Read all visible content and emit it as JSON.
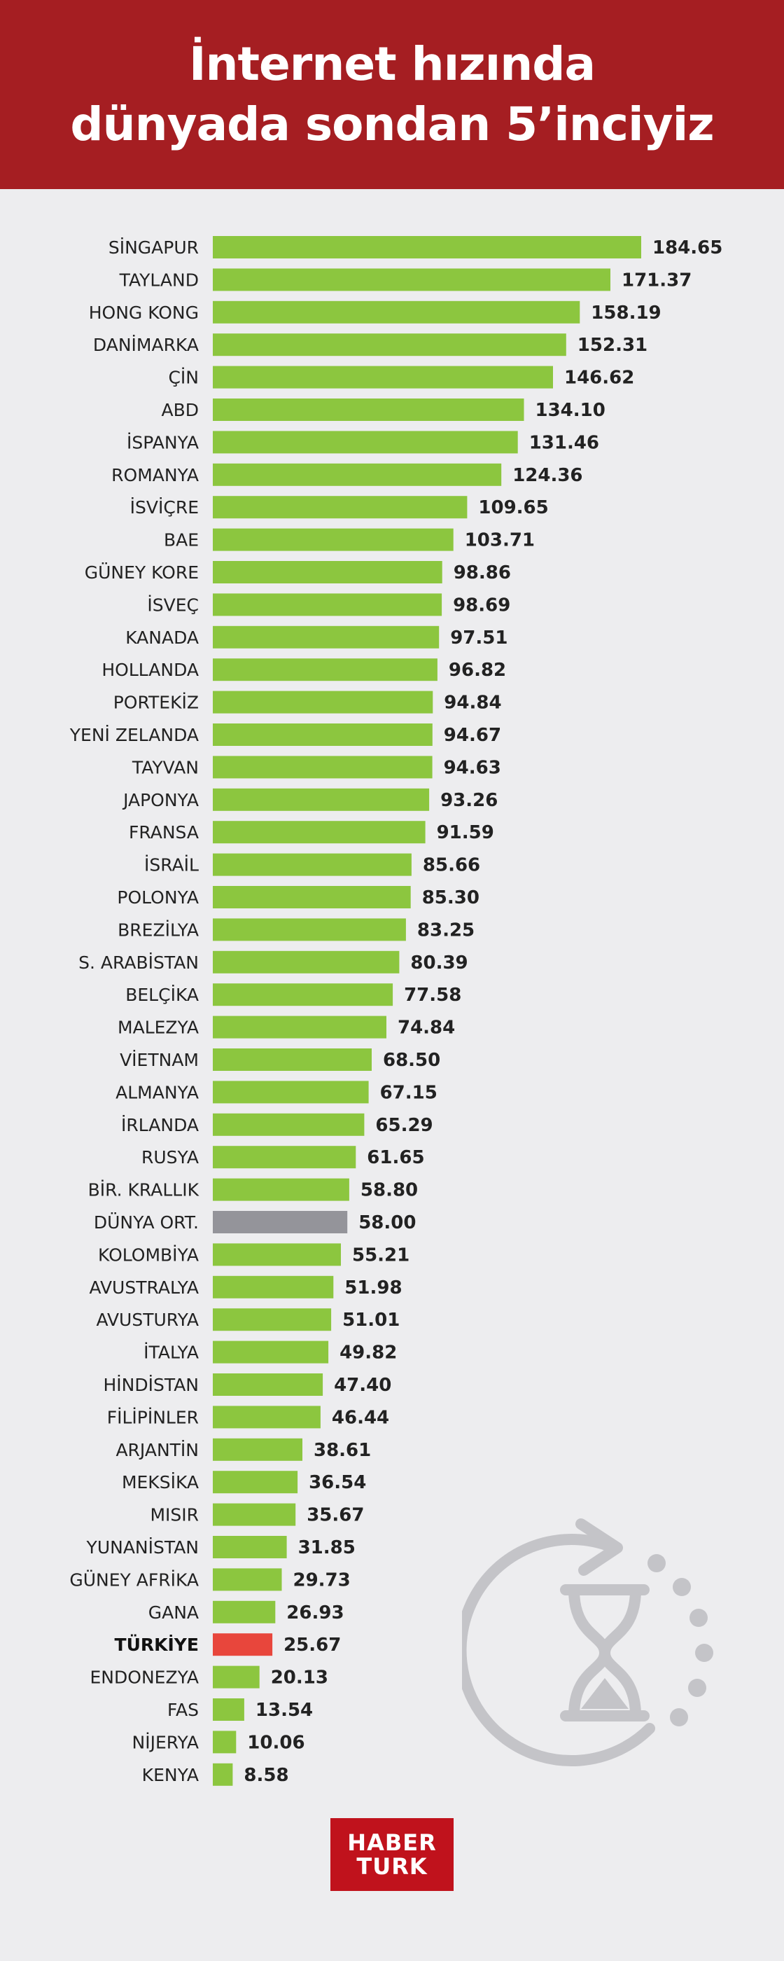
{
  "header": {
    "title_line1": "İnternet hızında",
    "title_line2": "dünyada sondan 5’inciyiz"
  },
  "colors": {
    "header_bg": "#a51e22",
    "bar_default": "#8cc63f",
    "bar_average": "#94949a",
    "bar_highlight": "#e8463c",
    "logo_bg": "#c0121c"
  },
  "chart_data": {
    "type": "bar",
    "orientation": "horizontal",
    "title": "İnternet hızında dünyada sondan 5’inciyiz",
    "xlabel": "",
    "ylabel": "",
    "xlim": [
      0,
      200
    ],
    "grid": false,
    "legend": "none",
    "highlight_category": "TÜRKİYE",
    "average_category": "DÜNYA ORT.",
    "categories": [
      "SİNGAPUR",
      "TAYLAND",
      "HONG KONG",
      "DANİMARKA",
      "ÇİN",
      "ABD",
      "İSPANYA",
      "ROMANYA",
      "İSVİÇRE",
      "BAE",
      "GÜNEY KORE",
      "İSVEÇ",
      "KANADA",
      "HOLLANDA",
      "PORTEKİZ",
      "YENİ ZELANDA",
      "TAYVAN",
      "JAPONYA",
      "FRANSA",
      "İSRAİL",
      "POLONYA",
      "BREZİLYA",
      "S. ARABİSTAN",
      "BELÇİKA",
      "MALEZYA",
      "VİETNAM",
      "ALMANYA",
      "İRLANDA",
      "RUSYA",
      "BİR. KRALLIK",
      "DÜNYA ORT.",
      "KOLOMBİYA",
      "AVUSTRALYA",
      "AVUSTURYA",
      "İTALYA",
      "HİNDİSTAN",
      "FİLİPİNLER",
      "ARJANTİN",
      "MEKSİKA",
      "MISIR",
      "YUNANİSTAN",
      "GÜNEY AFRİKA",
      "GANA",
      "TÜRKİYE",
      "ENDONEZYA",
      "FAS",
      "NİJERYA",
      "KENYA"
    ],
    "values": [
      184.65,
      171.37,
      158.19,
      152.31,
      146.62,
      134.1,
      131.46,
      124.36,
      109.65,
      103.71,
      98.86,
      98.69,
      97.51,
      96.82,
      94.84,
      94.67,
      94.63,
      93.26,
      91.59,
      85.66,
      85.3,
      83.25,
      80.39,
      77.58,
      74.84,
      68.5,
      67.15,
      65.29,
      61.65,
      58.8,
      58.0,
      55.21,
      51.98,
      51.01,
      49.82,
      47.4,
      46.44,
      38.61,
      36.54,
      35.67,
      31.85,
      29.73,
      26.93,
      25.67,
      20.13,
      13.54,
      10.06,
      8.58
    ],
    "value_labels": [
      "184.65",
      "171.37",
      "158.19",
      "152.31",
      "146.62",
      "134.10",
      "131.46",
      "124.36",
      "109.65",
      "103.71",
      "98.86",
      "98.69",
      "97.51",
      "96.82",
      "94.84",
      "94.67",
      "94.63",
      "93.26",
      "91.59",
      "85.66",
      "85.30",
      "83.25",
      "80.39",
      "77.58",
      "74.84",
      "68.50",
      "67.15",
      "65.29",
      "61.65",
      "58.80",
      "58.00",
      "55.21",
      "51.98",
      "51.01",
      "49.82",
      "47.40",
      "46.44",
      "38.61",
      "36.54",
      "35.67",
      "31.85",
      "29.73",
      "26.93",
      "25.67",
      "20.13",
      "13.54",
      "10.06",
      "8.58"
    ]
  },
  "decoration": {
    "icon": "hourglass-refresh-icon",
    "color": "#c4c4c8"
  },
  "logo": {
    "line1": "HABER",
    "line2": "TURK"
  }
}
